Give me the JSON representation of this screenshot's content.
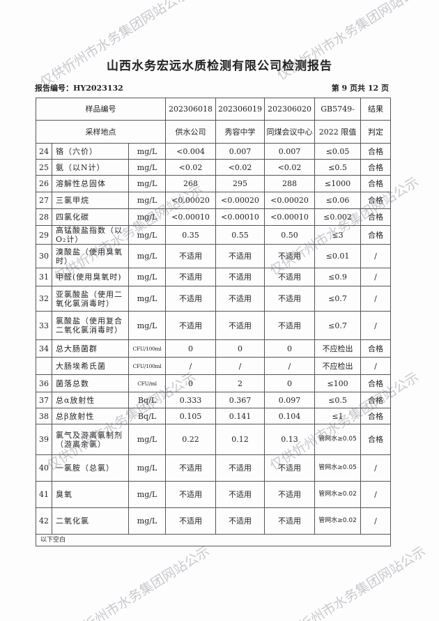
{
  "title": "山西水务宏远水质检测有限公司检测报告",
  "report_no": "报告编号：HY2023132",
  "page_no": "第 9 页共 12 页",
  "header": {
    "sample_no_label": "样品编号",
    "site_label": "采样地点",
    "samples": [
      "202306018",
      "202306019",
      "202306020"
    ],
    "sites": [
      "供水公司",
      "秀容中学",
      "同煤会议中心"
    ],
    "limit_label_1": "GB5749-",
    "limit_label_2": "2022 限值",
    "result_label_1": "结果",
    "result_label_2": "判定"
  },
  "rows": [
    {
      "no": "24",
      "name": "铬（六价）",
      "unit": "mg/L",
      "v": [
        "<0.004",
        "0.007",
        "0.007"
      ],
      "limit": "≤0.05",
      "result": "合格"
    },
    {
      "no": "25",
      "name": "氨（以N计）",
      "unit": "mg/L",
      "v": [
        "<0.02",
        "<0.02",
        "<0.02"
      ],
      "limit": "≤0.5",
      "result": "合格"
    },
    {
      "no": "26",
      "name": "溶解性总固体",
      "unit": "mg/L",
      "v": [
        "268",
        "295",
        "288"
      ],
      "limit": "≤1000",
      "result": "合格"
    },
    {
      "no": "27",
      "name": "三氯甲烷",
      "unit": "mg/L",
      "v": [
        "<0.00020",
        "<0.00020",
        "<0.00020"
      ],
      "limit": "≤0.06",
      "result": "合格"
    },
    {
      "no": "28",
      "name": "四氯化碳",
      "unit": "mg/L",
      "v": [
        "<0.00010",
        "<0.00010",
        "<0.00010"
      ],
      "limit": "≤0.002",
      "result": "合格"
    },
    {
      "no": "29",
      "name": "高锰酸盐指数（以O₂计）",
      "unit": "mg/L",
      "v": [
        "0.35",
        "0.55",
        "0.50"
      ],
      "limit": "≤3",
      "result": "合格"
    },
    {
      "no": "30",
      "name": "溴酸盐（使用臭氧时）",
      "unit": "mg/L",
      "v": [
        "不适用",
        "不适用",
        "不适用"
      ],
      "limit": "≤0.01",
      "result": "/"
    },
    {
      "no": "31",
      "name": "甲醛(使用臭氧时)",
      "unit": "mg/L",
      "v": [
        "不适用",
        "不适用",
        "不适用"
      ],
      "limit": "≤0.9",
      "result": "/"
    },
    {
      "no": "32",
      "name": "亚氯酸盐（使用二氧化氯消毒时）",
      "unit": "mg/L",
      "v": [
        "不适用",
        "不适用",
        "不适用"
      ],
      "limit": "≤0.7",
      "result": "/"
    },
    {
      "no": "33",
      "name": "氯酸盐（使用复合二氧化氯消毒时）",
      "unit": "mg/L",
      "v": [
        "不适用",
        "不适用",
        "不适用"
      ],
      "limit": "≤0.7",
      "result": "/"
    },
    {
      "no": "34",
      "name": "总大肠菌群",
      "unit": "CFU/100ml",
      "v": [
        "0",
        "0",
        "0"
      ],
      "limit": "不应检出",
      "result": "合格"
    },
    {
      "no": "",
      "name": "大肠埃希氏菌",
      "unit": "CFU/100ml",
      "v": [
        "/",
        "/",
        "/"
      ],
      "limit": "不应检出",
      "result": "/"
    },
    {
      "no": "36",
      "name": "菌落总数",
      "unit": "CFU/ml",
      "v": [
        "0",
        "2",
        "0"
      ],
      "limit": "≤100",
      "result": "合格"
    },
    {
      "no": "37",
      "name": "总α放射性",
      "unit": "Bq/L",
      "v": [
        "0.333",
        "0.367",
        "0.097"
      ],
      "limit": "≤0.5",
      "result": "合格"
    },
    {
      "no": "38",
      "name": "总β放射性",
      "unit": "Bq/L",
      "v": [
        "0.105",
        "0.141",
        "0.104"
      ],
      "limit": "≤1",
      "result": "合格"
    },
    {
      "no": "39",
      "name": "氯气及游离氯制剂（游离余氯）",
      "unit": "mg/L",
      "v": [
        "0.22",
        "0.12",
        "0.13"
      ],
      "limit": "管网水≥0.05",
      "result": "合格"
    },
    {
      "no": "40",
      "name": "一氯胺（总氯）",
      "unit": "mg/L",
      "v": [
        "不适用",
        "不适用",
        "不适用"
      ],
      "limit": "管网水≥0.05",
      "result": "/"
    },
    {
      "no": "41",
      "name": "臭氧",
      "unit": "mg/L",
      "v": [
        "不适用",
        "不适用",
        "不适用"
      ],
      "limit": "管网水≥0.02",
      "result": "/"
    },
    {
      "no": "42",
      "name": "二氧化氯",
      "unit": "mg/L",
      "v": [
        "不适用",
        "不适用",
        "不适用"
      ],
      "limit": "管网水≥0.02",
      "result": "/"
    }
  ],
  "footer_note": "以下空白",
  "watermark": "仅供忻州市水务集团网站公示"
}
